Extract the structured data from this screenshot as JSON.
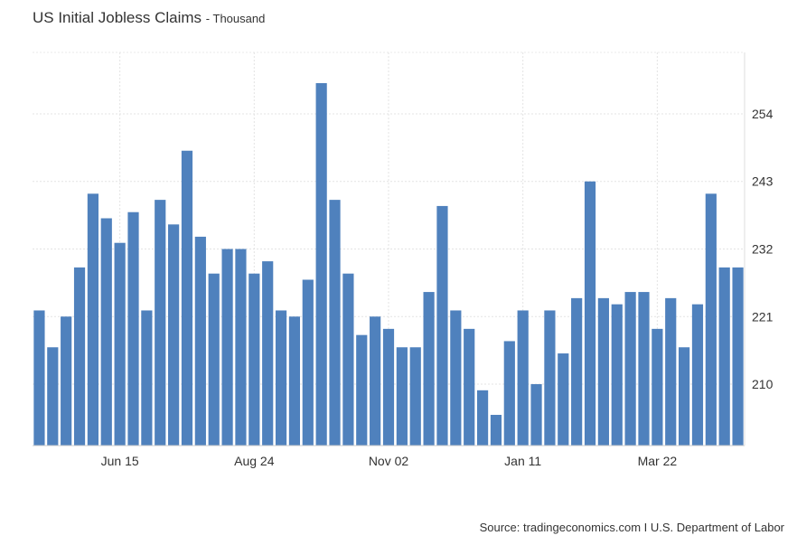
{
  "chart_data": {
    "type": "bar",
    "title": "US Initial Jobless Claims",
    "subtitle": "Thousand",
    "xlabel": "",
    "ylabel": "",
    "y_ticks": [
      210,
      221,
      232,
      243,
      254
    ],
    "ylim": [
      200,
      264
    ],
    "x_tick_labels": [
      {
        "label": "Jun 15",
        "index": 6
      },
      {
        "label": "Aug 24",
        "index": 16
      },
      {
        "label": "Nov 02",
        "index": 26
      },
      {
        "label": "Jan 11",
        "index": 36
      },
      {
        "label": "Mar 22",
        "index": 46
      }
    ],
    "grid": true,
    "color": "#4f81bd",
    "values": [
      222,
      216,
      221,
      229,
      241,
      237,
      233,
      238,
      222,
      240,
      236,
      248,
      234,
      228,
      232,
      232,
      228,
      230,
      222,
      221,
      227,
      259,
      240,
      228,
      218,
      221,
      219,
      216,
      216,
      225,
      239,
      222,
      219,
      209,
      205,
      217,
      222,
      210,
      222,
      215,
      224,
      243,
      224,
      223,
      225,
      225,
      219,
      224,
      216,
      223,
      241,
      229,
      229
    ]
  },
  "source": "Source: tradingeconomics.com I U.S. Department of Labor"
}
